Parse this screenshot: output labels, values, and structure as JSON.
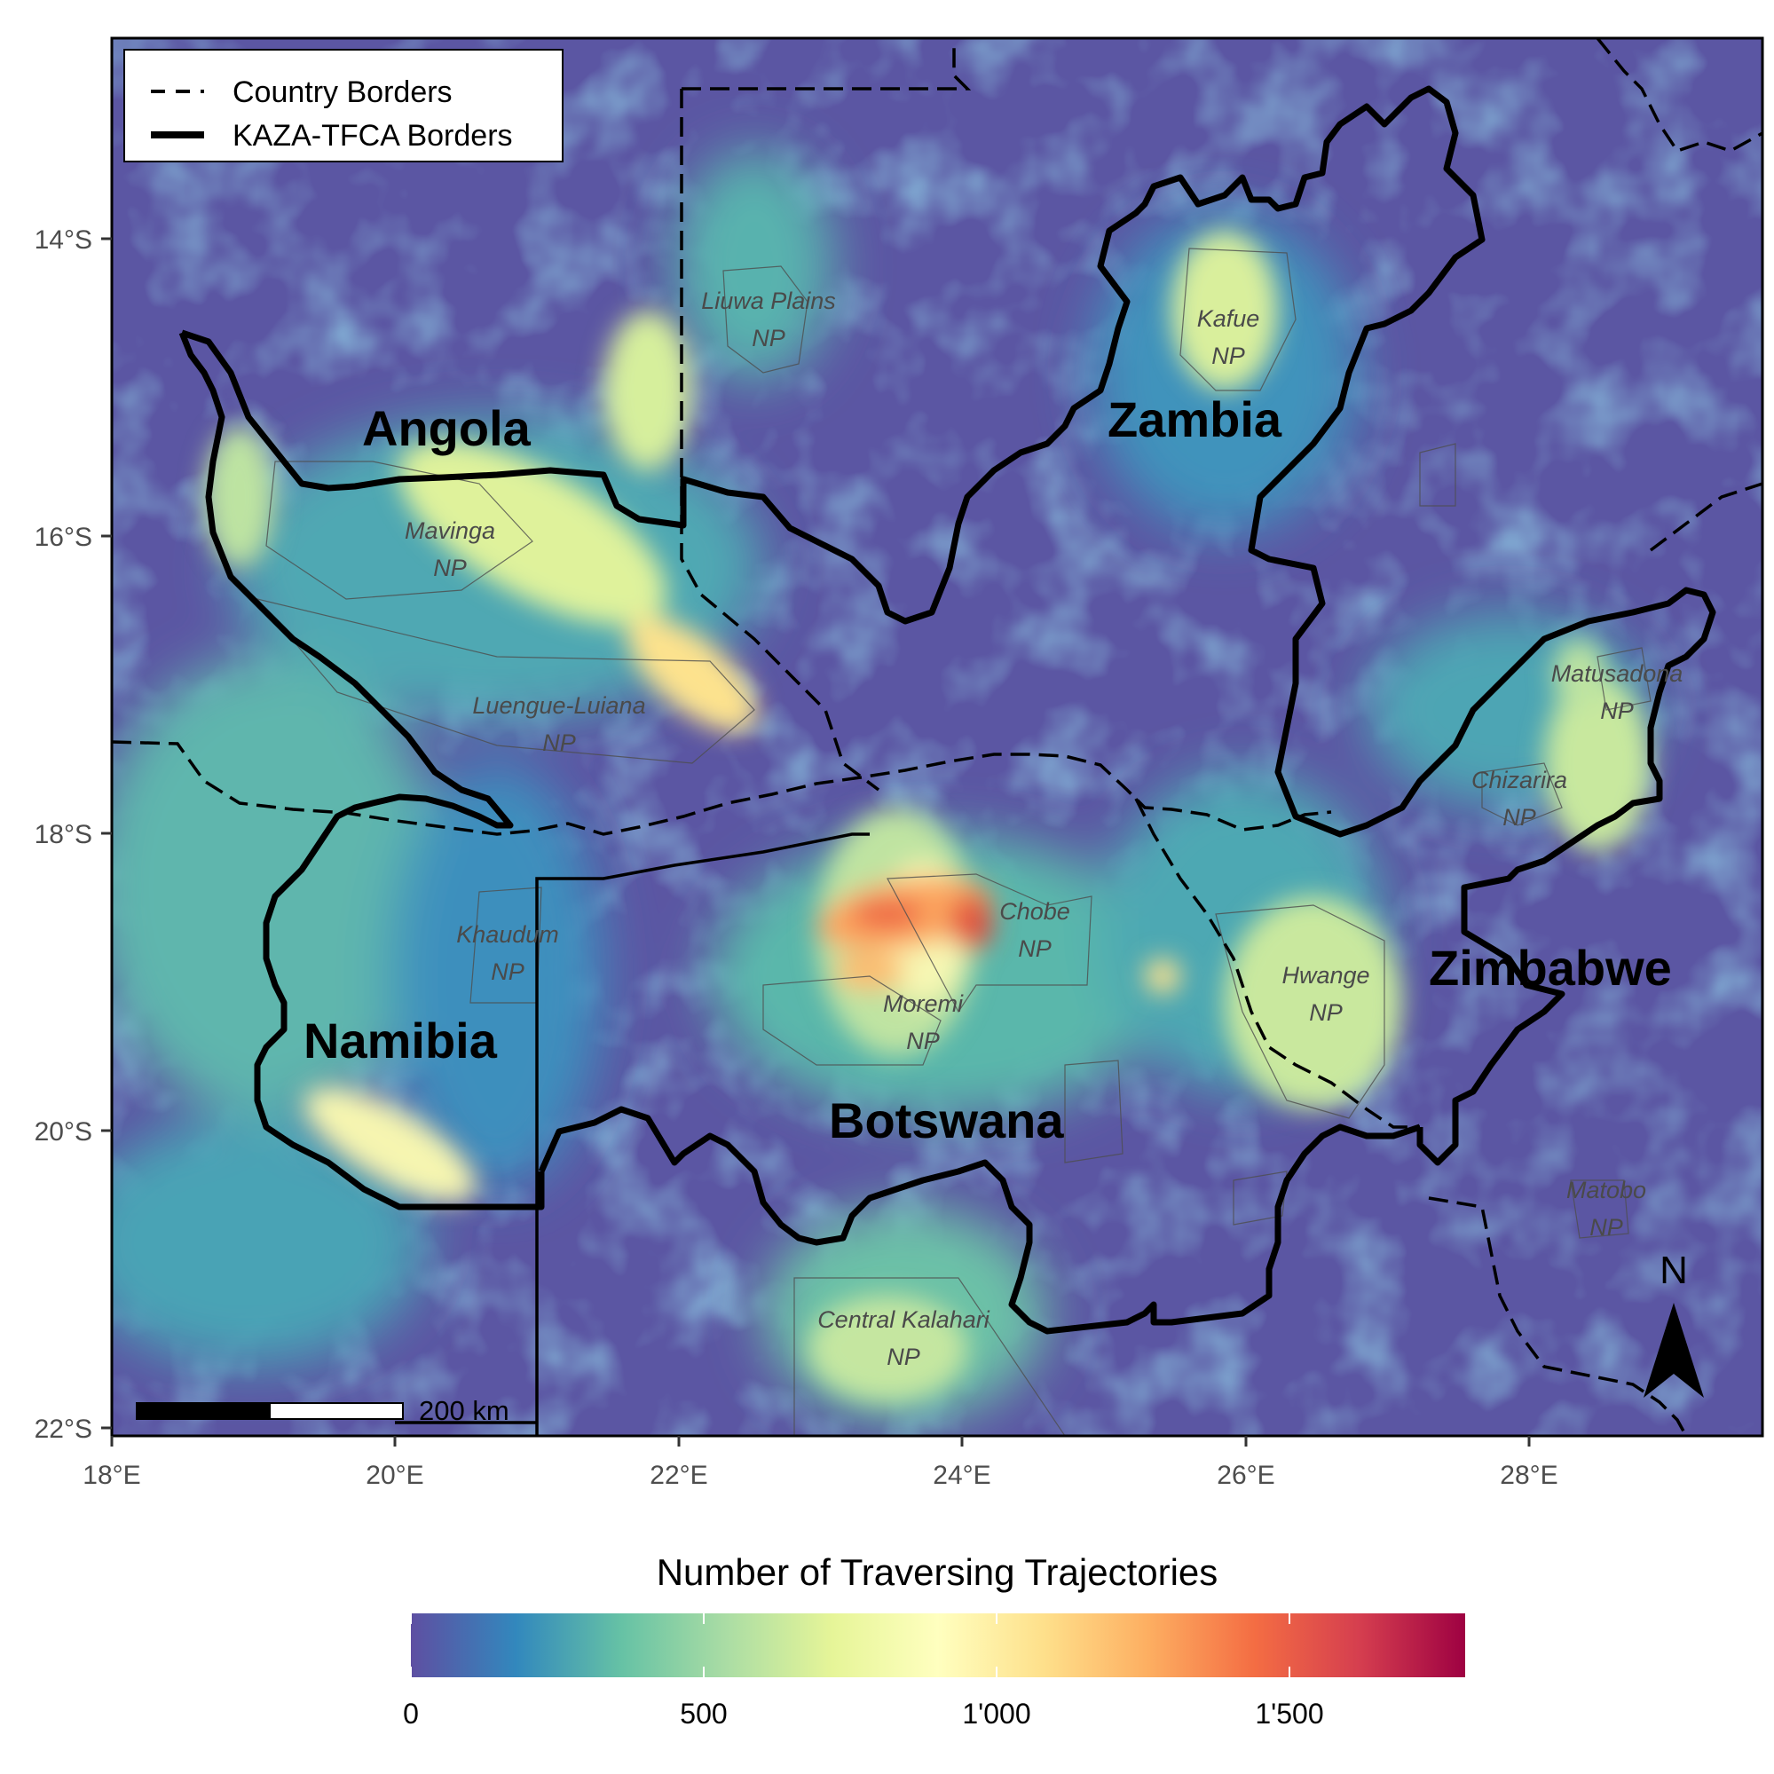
{
  "legend": {
    "items": [
      {
        "label": "Country Borders",
        "style": "dashed"
      },
      {
        "label": "KAZA-TFCA Borders",
        "style": "solid"
      }
    ]
  },
  "axes": {
    "x_ticks": [
      "18°E",
      "20°E",
      "22°E",
      "24°E",
      "26°E",
      "28°E"
    ],
    "y_ticks": [
      "14°S",
      "16°S",
      "18°S",
      "20°S",
      "22°S"
    ]
  },
  "countries": {
    "angola": "Angola",
    "zambia": "Zambia",
    "namibia": "Namibia",
    "botswana": "Botswana",
    "zimbabwe": "Zimbabwe"
  },
  "parks": [
    {
      "key": "liuwa",
      "line1": "Liuwa Plains",
      "line2": "NP"
    },
    {
      "key": "kafue",
      "line1": "Kafue",
      "line2": "NP"
    },
    {
      "key": "mavinga",
      "line1": "Mavinga",
      "line2": "NP"
    },
    {
      "key": "luengue",
      "line1": "Luengue-Luiana",
      "line2": "NP"
    },
    {
      "key": "matusadona",
      "line1": "Matusadona",
      "line2": "NP"
    },
    {
      "key": "chizarira",
      "line1": "Chizarira",
      "line2": "NP"
    },
    {
      "key": "khaudum",
      "line1": "Khaudum",
      "line2": "NP"
    },
    {
      "key": "chobe",
      "line1": "Chobe",
      "line2": "NP"
    },
    {
      "key": "moremi",
      "line1": "Moremi",
      "line2": "NP"
    },
    {
      "key": "hwange",
      "line1": "Hwange",
      "line2": "NP"
    },
    {
      "key": "matobo",
      "line1": "Matobo",
      "line2": "NP"
    },
    {
      "key": "central_kalahari",
      "line1": "Central Kalahari",
      "line2": "NP"
    }
  ],
  "scale_bar": {
    "label": "200 km"
  },
  "north_arrow": {
    "label": "N"
  },
  "colorbar": {
    "title": "Number of Traversing Trajectories",
    "ticks": [
      "0",
      "500",
      "1'000",
      "1'500"
    ],
    "range": [
      0,
      1800
    ],
    "colors": [
      "#5e4fa2",
      "#3288bd",
      "#66c2a5",
      "#abdda4",
      "#e6f598",
      "#ffffbf",
      "#fee08b",
      "#fdae61",
      "#f46d43",
      "#d53e4f",
      "#9e0142"
    ]
  }
}
